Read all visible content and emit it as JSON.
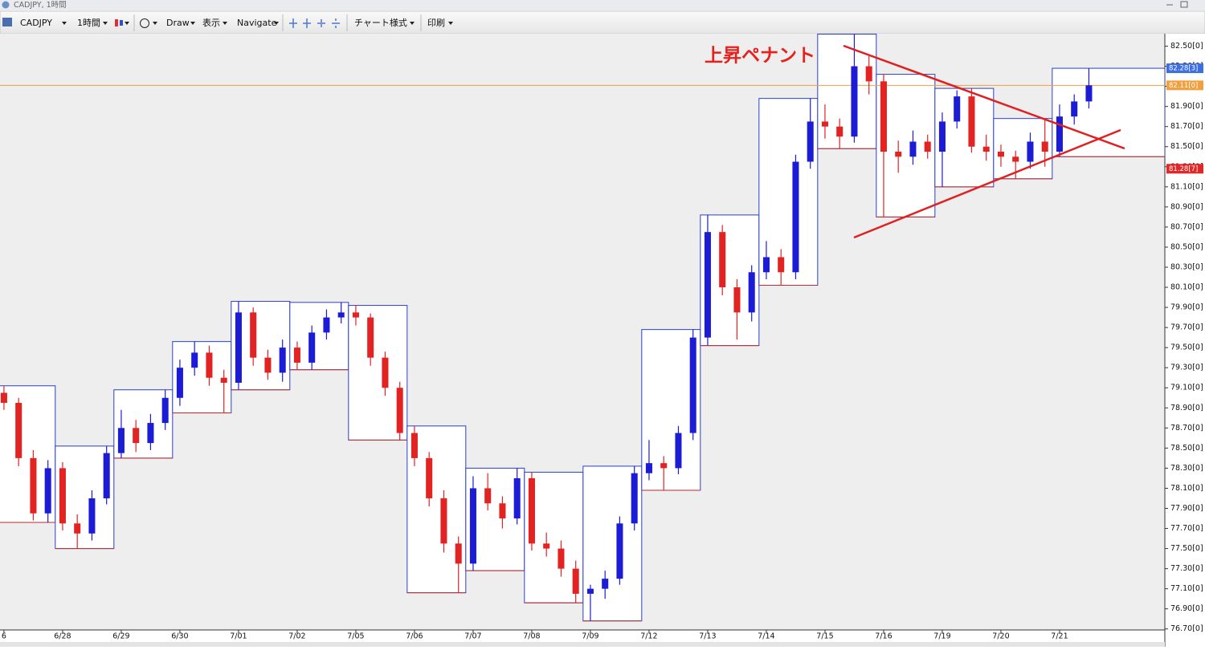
{
  "window": {
    "title": "CADJPY, 1時間"
  },
  "toolbar": {
    "symbol": "CADJPY",
    "timeframe": "1時間",
    "draw": "Draw",
    "view": "表示",
    "navigate": "Navigate",
    "chart_style": "チャート様式",
    "print": "印刷"
  },
  "chart_data": {
    "type": "candlestick",
    "annotation": "上昇ペナント",
    "up_color": "#1c1cd6",
    "down_color": "#e32222",
    "box_high_color": "#2a3fc8",
    "box_low_color": "#c0302a",
    "xlim": [
      -0.27,
      79.18
    ],
    "ylim": [
      76.69,
      82.64
    ],
    "xticks": [
      {
        "value": 0,
        "label": "6"
      },
      {
        "value": 4,
        "label": "6/28"
      },
      {
        "value": 8,
        "label": "6/29"
      },
      {
        "value": 12,
        "label": "6/30"
      },
      {
        "value": 16,
        "label": "7/01"
      },
      {
        "value": 20,
        "label": "7/02"
      },
      {
        "value": 24,
        "label": "7/05"
      },
      {
        "value": 28,
        "label": "7/06"
      },
      {
        "value": 32,
        "label": "7/07"
      },
      {
        "value": 36,
        "label": "7/08"
      },
      {
        "value": 40,
        "label": "7/09"
      },
      {
        "value": 44,
        "label": "7/12"
      },
      {
        "value": 48,
        "label": "7/13"
      },
      {
        "value": 52,
        "label": "7/14"
      },
      {
        "value": 56,
        "label": "7/15"
      },
      {
        "value": 60,
        "label": "7/16"
      },
      {
        "value": 64,
        "label": "7/19"
      },
      {
        "value": 68,
        "label": "7/20"
      },
      {
        "value": 72,
        "label": "7/21"
      }
    ],
    "yticks": [
      {
        "value": 82.5,
        "label": "82.50[0]"
      },
      {
        "value": 82.3,
        "label": "82.30[0]"
      },
      {
        "value": 82.1,
        "label": "82.10[0]"
      },
      {
        "value": 81.9,
        "label": "81.90[0]"
      },
      {
        "value": 81.7,
        "label": "81.70[0]"
      },
      {
        "value": 81.5,
        "label": "81.50[0]"
      },
      {
        "value": 81.3,
        "label": "81.30[0]"
      },
      {
        "value": 81.1,
        "label": "81.10[0]"
      },
      {
        "value": 80.9,
        "label": "80.90[0]"
      },
      {
        "value": 80.7,
        "label": "80.70[0]"
      },
      {
        "value": 80.5,
        "label": "80.50[0]"
      },
      {
        "value": 80.3,
        "label": "80.30[0]"
      },
      {
        "value": 80.1,
        "label": "80.10[0]"
      },
      {
        "value": 79.9,
        "label": "79.90[0]"
      },
      {
        "value": 79.7,
        "label": "79.70[0]"
      },
      {
        "value": 79.5,
        "label": "79.50[0]"
      },
      {
        "value": 79.3,
        "label": "79.30[0]"
      },
      {
        "value": 79.1,
        "label": "79.10[0]"
      },
      {
        "value": 78.9,
        "label": "78.90[0]"
      },
      {
        "value": 78.7,
        "label": "78.70[0]"
      },
      {
        "value": 78.5,
        "label": "78.50[0]"
      },
      {
        "value": 78.3,
        "label": "78.30[0]"
      },
      {
        "value": 78.1,
        "label": "78.10[0]"
      },
      {
        "value": 77.9,
        "label": "77.90[0]"
      },
      {
        "value": 77.7,
        "label": "77.70[0]"
      },
      {
        "value": 77.5,
        "label": "77.50[0]"
      },
      {
        "value": 77.3,
        "label": "77.30[0]"
      },
      {
        "value": 77.1,
        "label": "77.10[0]"
      },
      {
        "value": 76.9,
        "label": "76.90[0]"
      },
      {
        "value": 76.7,
        "label": "76.70[0]"
      }
    ],
    "price_tags": [
      {
        "value": 82.28,
        "label": "82.28[3]",
        "color": "#3d6fe0"
      },
      {
        "value": 82.11,
        "label": "82.11[0]",
        "color": "#f0a040"
      },
      {
        "value": 81.28,
        "label": "81.28[7]",
        "color": "#e02828"
      }
    ],
    "ohlc": [
      [
        79.05,
        79.12,
        78.88,
        78.95
      ],
      [
        78.95,
        79.0,
        78.32,
        78.4
      ],
      [
        78.4,
        78.48,
        77.78,
        77.85
      ],
      [
        77.85,
        78.38,
        77.76,
        78.3
      ],
      [
        78.3,
        78.36,
        77.68,
        77.75
      ],
      [
        77.75,
        77.84,
        77.5,
        77.65
      ],
      [
        77.65,
        78.08,
        77.58,
        78.0
      ],
      [
        78.0,
        78.52,
        77.94,
        78.45
      ],
      [
        78.45,
        78.88,
        78.4,
        78.7
      ],
      [
        78.7,
        78.78,
        78.46,
        78.55
      ],
      [
        78.55,
        78.84,
        78.48,
        78.75
      ],
      [
        78.75,
        79.08,
        78.68,
        79.0
      ],
      [
        79.0,
        79.38,
        78.92,
        79.3
      ],
      [
        79.3,
        79.56,
        79.22,
        79.45
      ],
      [
        79.45,
        79.52,
        79.12,
        79.2
      ],
      [
        79.2,
        79.28,
        78.85,
        79.15
      ],
      [
        79.15,
        79.96,
        79.08,
        79.85
      ],
      [
        79.85,
        79.9,
        79.32,
        79.4
      ],
      [
        79.4,
        79.48,
        79.18,
        79.25
      ],
      [
        79.25,
        79.58,
        79.16,
        79.5
      ],
      [
        79.5,
        79.56,
        79.28,
        79.35
      ],
      [
        79.35,
        79.72,
        79.28,
        79.65
      ],
      [
        79.65,
        79.88,
        79.58,
        79.8
      ],
      [
        79.8,
        79.95,
        79.74,
        79.85
      ],
      [
        79.85,
        79.92,
        79.72,
        79.8
      ],
      [
        79.8,
        79.84,
        79.32,
        79.4
      ],
      [
        79.4,
        79.46,
        79.02,
        79.1
      ],
      [
        79.1,
        79.16,
        78.58,
        78.65
      ],
      [
        78.65,
        78.72,
        78.32,
        78.4
      ],
      [
        78.4,
        78.46,
        77.92,
        78.0
      ],
      [
        78.0,
        78.08,
        77.46,
        77.55
      ],
      [
        77.55,
        77.62,
        77.06,
        77.35
      ],
      [
        77.35,
        78.22,
        77.28,
        78.1
      ],
      [
        78.1,
        78.25,
        77.88,
        77.95
      ],
      [
        77.95,
        78.02,
        77.7,
        77.8
      ],
      [
        77.8,
        78.3,
        77.74,
        78.2
      ],
      [
        78.2,
        78.26,
        77.48,
        77.55
      ],
      [
        77.55,
        77.66,
        77.42,
        77.5
      ],
      [
        77.5,
        77.58,
        77.22,
        77.3
      ],
      [
        77.3,
        77.38,
        76.96,
        77.05
      ],
      [
        77.05,
        77.14,
        76.78,
        77.1
      ],
      [
        77.1,
        77.28,
        77.0,
        77.2
      ],
      [
        77.2,
        77.82,
        77.14,
        77.75
      ],
      [
        77.75,
        78.32,
        77.68,
        78.25
      ],
      [
        78.25,
        78.58,
        78.18,
        78.35
      ],
      [
        78.35,
        78.42,
        78.08,
        78.3
      ],
      [
        78.3,
        78.72,
        78.24,
        78.65
      ],
      [
        78.65,
        79.68,
        78.58,
        79.6
      ],
      [
        79.6,
        80.82,
        79.52,
        80.65
      ],
      [
        80.65,
        80.72,
        80.02,
        80.1
      ],
      [
        80.1,
        80.18,
        79.58,
        79.85
      ],
      [
        79.85,
        80.32,
        79.76,
        80.25
      ],
      [
        80.25,
        80.56,
        80.18,
        80.4
      ],
      [
        80.4,
        80.48,
        80.12,
        80.25
      ],
      [
        80.25,
        81.42,
        80.18,
        81.35
      ],
      [
        81.35,
        81.98,
        81.28,
        81.75
      ],
      [
        81.75,
        81.92,
        81.58,
        81.7
      ],
      [
        81.7,
        81.78,
        81.48,
        81.6
      ],
      [
        81.6,
        82.62,
        81.54,
        82.3
      ],
      [
        82.3,
        82.4,
        82.02,
        82.15
      ],
      [
        82.15,
        82.22,
        80.8,
        81.45
      ],
      [
        81.45,
        81.56,
        81.24,
        81.4
      ],
      [
        81.4,
        81.66,
        81.32,
        81.55
      ],
      [
        81.55,
        81.62,
        81.38,
        81.45
      ],
      [
        81.45,
        81.84,
        81.1,
        81.75
      ],
      [
        81.75,
        82.06,
        81.68,
        82.0
      ],
      [
        82.0,
        82.08,
        81.44,
        81.5
      ],
      [
        81.5,
        81.62,
        81.36,
        81.45
      ],
      [
        81.45,
        81.52,
        81.3,
        81.4
      ],
      [
        81.4,
        81.46,
        81.18,
        81.35
      ],
      [
        81.35,
        81.64,
        81.28,
        81.55
      ],
      [
        81.55,
        81.78,
        81.3,
        81.45
      ],
      [
        81.45,
        81.92,
        81.4,
        81.8
      ],
      [
        81.8,
        82.02,
        81.72,
        81.95
      ],
      [
        81.95,
        82.28,
        81.88,
        82.11
      ]
    ]
  }
}
